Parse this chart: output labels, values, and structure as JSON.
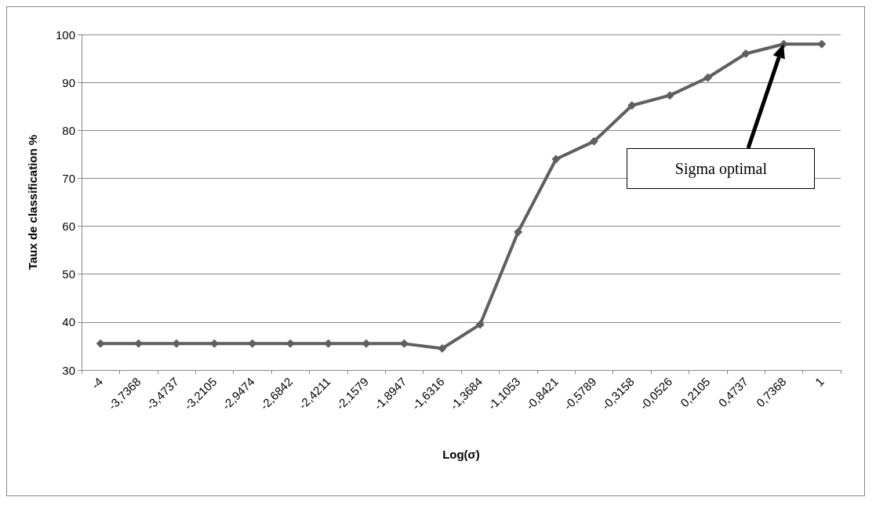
{
  "chart_data": {
    "type": "line",
    "xlabel": "Log(σ)",
    "ylabel": "Taux de classification %",
    "categories": [
      "-4",
      "-3,7368",
      "-3,4737",
      "-3,2105",
      "-2,9474",
      "-2,6842",
      "-2,4211",
      "-2,1579",
      "-1,8947",
      "-1,6316",
      "-1,3684",
      "-1,1053",
      "-0,8421",
      "-0,5789",
      "-0,3158",
      "-0,0526",
      "0,2105",
      "0,4737",
      "0,7368",
      "1"
    ],
    "series": [
      {
        "color": "#5f5f5f",
        "values": [
          35.5,
          35.5,
          35.5,
          35.5,
          35.5,
          35.5,
          35.5,
          35.5,
          35.5,
          34.5,
          39.5,
          58.8,
          74,
          77.7,
          85.2,
          87.3,
          91,
          96,
          98,
          98
        ]
      }
    ],
    "ylim": [
      30,
      100
    ],
    "yticks": [
      30,
      40,
      50,
      60,
      70,
      80,
      90,
      100
    ],
    "grid": "y",
    "marker": "diamond",
    "line_style": "solid",
    "annotations": [
      "Sigma optimal"
    ]
  }
}
